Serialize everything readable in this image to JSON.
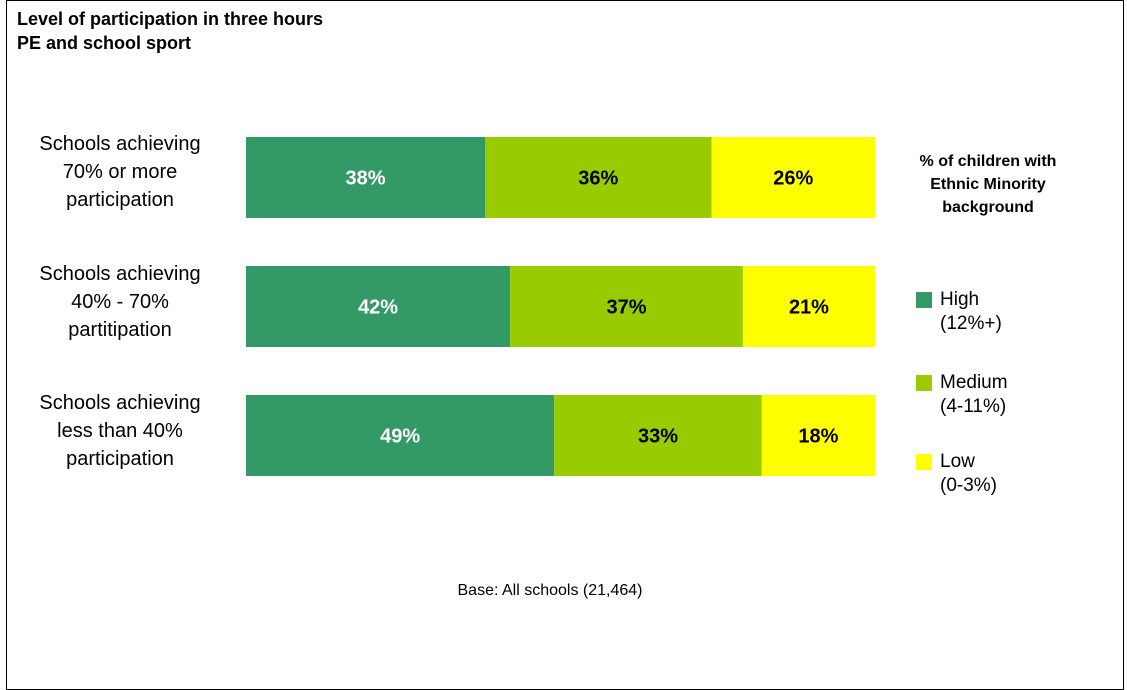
{
  "chart_data": {
    "type": "bar",
    "orientation": "horizontal",
    "stacked": true,
    "title_lines": [
      "Level of participation in three hours",
      "PE and school sport"
    ],
    "categories": [
      [
        "Schools achieving",
        "70% or more",
        "participation"
      ],
      [
        "Schools achieving",
        "40% - 70%",
        "partitipation"
      ],
      [
        "Schools achieving",
        "less than 40%",
        "participation"
      ]
    ],
    "series": [
      {
        "name_lines": [
          "High",
          "(12%+)"
        ],
        "color": "#339966",
        "label_color": "#ffffff",
        "values": [
          38,
          42,
          49
        ],
        "labels": [
          "38%",
          "42%",
          "49%"
        ]
      },
      {
        "name_lines": [
          "Medium",
          "(4-11%)"
        ],
        "color": "#99cc00",
        "label_color": "#000000",
        "values": [
          36,
          37,
          33
        ],
        "labels": [
          "36%",
          "37%",
          "33%"
        ]
      },
      {
        "name_lines": [
          "Low",
          "(0-3%)"
        ],
        "color": "#ffff00",
        "label_color": "#000000",
        "values": [
          26,
          21,
          18
        ],
        "labels": [
          "26%",
          "21%",
          "18%"
        ]
      }
    ],
    "xlim": [
      0,
      100
    ],
    "legend_title_lines": [
      "% of children with",
      "Ethnic Minority",
      "background"
    ],
    "legend_position": "right",
    "grid": false
  },
  "footnote": "Base: All schools (21,464)"
}
